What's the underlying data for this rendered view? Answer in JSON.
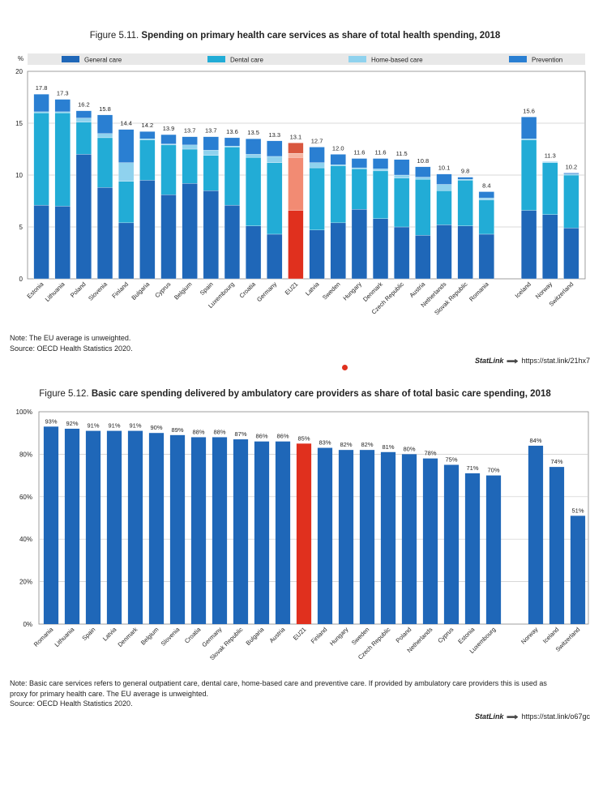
{
  "figure1": {
    "number": "Figure 5.11.",
    "title": "Spending on primary health care services as share of total health spending, 2018",
    "note": "Note: The EU average is unweighted.",
    "source": "Source: OECD Health Statistics 2020.",
    "statlink_brand": "StatLink",
    "statlink_url": "https://stat.link/21hx7",
    "colors": {
      "general": "#1f67b8",
      "dental": "#22acd6",
      "home": "#8fd2ee",
      "prevention": "#2a7fd2",
      "eu_general": "#e0301e",
      "eu_dental": "#f28b73",
      "eu_home": "#f6b6a3",
      "eu_prevention": "#d9573f"
    }
  },
  "figure2": {
    "number": "Figure 5.12.",
    "title": "Basic care spending delivered by ambulatory care providers as share of total basic care spending, 2018",
    "note_line1": "Note: Basic care services refers to general outpatient care, dental care, home-based care and preventive care. If provided by ambulatory care providers this is used as",
    "note_line2": "proxy for primary health care. The EU average is unweighted.",
    "source": "Source: OECD Health Statistics 2020.",
    "statlink_brand": "StatLink",
    "statlink_url": "https://stat.link/o67gc",
    "colors": {
      "bar": "#1f67b8",
      "eu": "#e0301e"
    }
  },
  "chart_data": [
    {
      "type": "bar",
      "stacked": true,
      "title": "Spending on primary health care services as share of total health spending, 2018",
      "ylabel": "%",
      "ylim": [
        0,
        20
      ],
      "yticks": [
        0,
        5,
        10,
        15,
        20
      ],
      "legend": [
        "General care",
        "Dental care",
        "Home-based care",
        "Prevention"
      ],
      "legend_position": "top",
      "categories": [
        "Estonia",
        "Lithuania",
        "Poland",
        "Slovenia",
        "Finland",
        "Bulgaria",
        "Cyprus",
        "Belgium",
        "Spain",
        "Luxembourg",
        "Croatia",
        "Germany",
        "EU21",
        "Latvia",
        "Sweden",
        "Hungary",
        "Denmark",
        "Czech Republic",
        "Austria",
        "Netherlands",
        "Slovak Republic",
        "Romania",
        "",
        "Iceland",
        "Norway",
        "Switzerland"
      ],
      "totals": [
        "17.8",
        "17.3",
        "16.2",
        "15.8",
        "14.4",
        "14.2",
        "13.9",
        "13.7",
        "13.7",
        "13.6",
        "13.5",
        "13.3",
        "13.1",
        "12.7",
        "12.0",
        "11.6",
        "11.6",
        "11.5",
        "10.8",
        "10.1",
        "9.8",
        "8.4",
        "",
        "15.6",
        "11.3",
        "10.2"
      ],
      "highlight": "EU21",
      "series": [
        {
          "name": "General care",
          "values": [
            7.1,
            7.0,
            12.0,
            8.8,
            5.4,
            9.5,
            8.1,
            9.2,
            8.5,
            7.1,
            5.1,
            4.3,
            6.6,
            4.7,
            5.4,
            6.7,
            5.8,
            5.0,
            4.2,
            5.2,
            5.1,
            4.3,
            null,
            6.6,
            6.2,
            4.9
          ]
        },
        {
          "name": "Dental care",
          "values": [
            8.9,
            9.0,
            3.1,
            4.8,
            4.0,
            3.9,
            4.8,
            3.3,
            3.4,
            5.6,
            6.6,
            6.9,
            5.1,
            6.0,
            5.5,
            3.9,
            4.6,
            4.7,
            5.4,
            3.3,
            4.4,
            3.3,
            null,
            6.8,
            5.0,
            5.1
          ]
        },
        {
          "name": "Home-based care",
          "values": [
            0.1,
            0.1,
            0.4,
            0.4,
            1.8,
            0.1,
            0.1,
            0.4,
            0.5,
            0.1,
            0.3,
            0.6,
            0.4,
            0.5,
            0.1,
            0.1,
            0.2,
            0.3,
            0.2,
            0.6,
            0.1,
            0.2,
            null,
            0.1,
            0.1,
            0.1
          ]
        },
        {
          "name": "Prevention",
          "values": [
            1.7,
            1.2,
            0.7,
            1.8,
            3.2,
            0.7,
            0.9,
            0.8,
            1.3,
            0.8,
            1.5,
            1.5,
            1.0,
            1.5,
            1.0,
            0.9,
            1.0,
            1.5,
            1.0,
            1.0,
            0.2,
            0.6,
            null,
            2.1,
            0.0,
            0.1
          ]
        }
      ]
    },
    {
      "type": "bar",
      "title": "Basic care spending delivered by ambulatory care providers as share of total basic care spending, 2018",
      "ylim": [
        0,
        100
      ],
      "yticks": [
        "0%",
        "20%",
        "40%",
        "60%",
        "80%",
        "100%"
      ],
      "categories": [
        "Romania",
        "Lithuania",
        "Spain",
        "Latvia",
        "Denmark",
        "Belgium",
        "Slovenia",
        "Croatia",
        "Germany",
        "Slovak Republic",
        "Bulgaria",
        "Austria",
        "EU21",
        "Finland",
        "Hungary",
        "Sweden",
        "Czech Republic",
        "Poland",
        "Netherlands",
        "Cyprus",
        "Estonia",
        "Luxembourg",
        "",
        "Norway",
        "Iceland",
        "Switzerland"
      ],
      "values": [
        93,
        92,
        91,
        91,
        91,
        90,
        89,
        88,
        88,
        87,
        86,
        86,
        85,
        83,
        82,
        82,
        81,
        80,
        78,
        75,
        71,
        70,
        null,
        84,
        74,
        51
      ],
      "labels": [
        "93%",
        "92%",
        "91%",
        "91%",
        "91%",
        "90%",
        "89%",
        "88%",
        "88%",
        "87%",
        "86%",
        "86%",
        "85%",
        "83%",
        "82%",
        "82%",
        "81%",
        "80%",
        "78%",
        "75%",
        "71%",
        "70%",
        "",
        "84%",
        "74%",
        "51%"
      ],
      "highlight": "EU21"
    }
  ]
}
